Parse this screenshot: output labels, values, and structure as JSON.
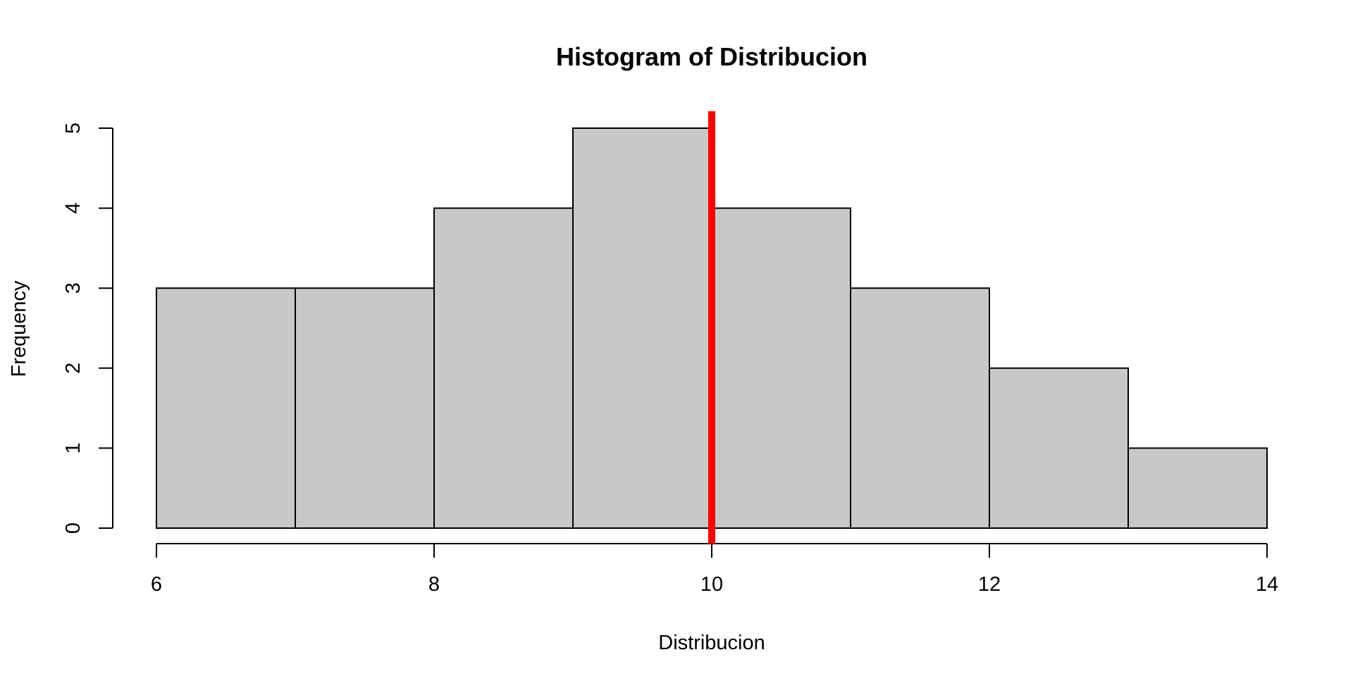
{
  "chart_data": {
    "type": "bar",
    "title": "Histogram of Distribucion",
    "xlabel": "Distribucion",
    "ylabel": "Frequency",
    "bins": [
      {
        "start": 6,
        "end": 7,
        "count": 3
      },
      {
        "start": 7,
        "end": 8,
        "count": 3
      },
      {
        "start": 8,
        "end": 9,
        "count": 4
      },
      {
        "start": 9,
        "end": 10,
        "count": 5
      },
      {
        "start": 10,
        "end": 11,
        "count": 4
      },
      {
        "start": 11,
        "end": 12,
        "count": 3
      },
      {
        "start": 12,
        "end": 13,
        "count": 2
      },
      {
        "start": 13,
        "end": 14,
        "count": 1
      }
    ],
    "xlim": [
      6,
      14
    ],
    "ylim": [
      0,
      5
    ],
    "x_ticks": [
      6,
      8,
      10,
      12,
      14
    ],
    "y_ticks": [
      0,
      1,
      2,
      3,
      4,
      5
    ],
    "reference_line": {
      "x": 10,
      "color": "#ff0000"
    },
    "bar_color": "#c8c8c8",
    "grid": false,
    "legend": "none"
  }
}
